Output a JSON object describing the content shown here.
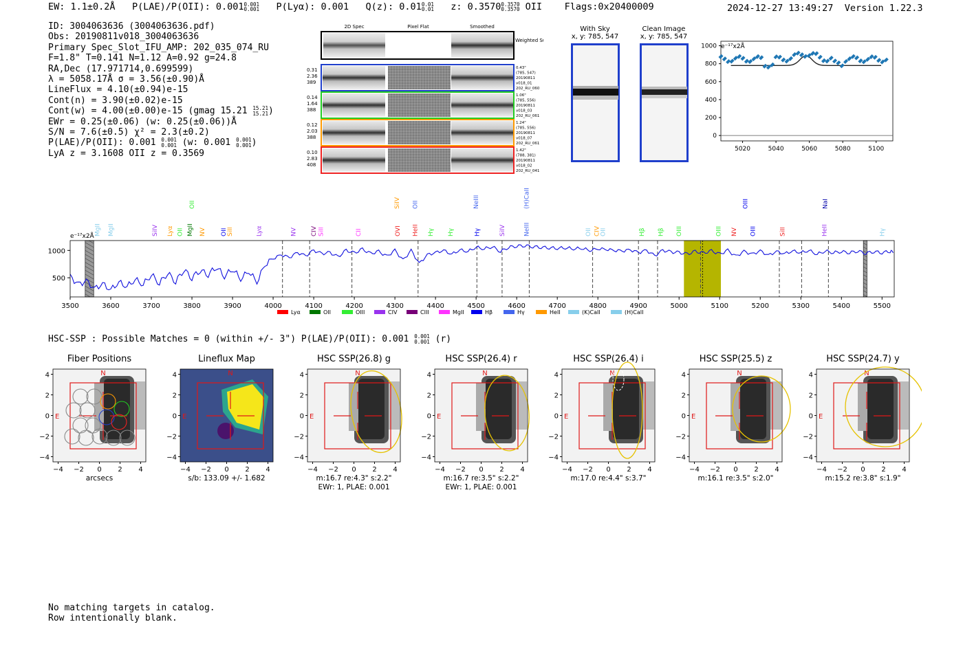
{
  "header": {
    "ew": "EW: 1.1±0.2Å",
    "plae": "P(LAE)/P(OII): 0.001",
    "plae_hi": "0.001",
    "plae_lo": "0.001",
    "plya": "P(Lyα): 0.001",
    "qz": "Q(z): 0.01",
    "qz_hi": "0.01",
    "qz_lo": "0.01",
    "z": "z: 0.3570",
    "z_hi": "0.3570",
    "z_lo": "0.3570",
    "z_line": "OII",
    "flags": "Flags:0x20400009",
    "timestamp": "2024-12-27 13:49:27",
    "version": "Version 1.22.3"
  },
  "info": {
    "id": "ID: 3004063636 (3004063636.pdf)",
    "obs": "Obs: 20190811v018_3004063636",
    "slot": "Primary Spec_Slot_IFU_AMP: 202_035_074_RU",
    "params": "F=1.8\"  T=0.141  N=1.12  A=0.92  g=24.8",
    "radec": "RA,Dec (17.971714,0.699599)",
    "lambda": "λ = 5058.17Å   σ = 3.56(±0.90)Å",
    "lineflux": "LineFlux = 4.10(±0.94)e-15",
    "contn": "Cont(n) = 3.90(±0.02)e-15",
    "contw": "Cont(w) = 4.00(±0.00)e-15 (gmag 15.21",
    "contw_hi": "15.21",
    "contw_lo": "15.21",
    "ewr": "EWr = 0.25(±0.06) (w: 0.25(±0.06))Å",
    "sn": "S/N = 7.6(±0.5)  χ² = 2.3(±0.2)",
    "plae": "P(LAE)/P(OII): 0.001",
    "plae_hi": "0.001",
    "plae_lo": "0.001",
    "plae_w": "(w: 0.001",
    "plae_w_hi": "0.001",
    "plae_w_lo": "0.001",
    "lya": "LyA z = 3.1608   OII z = 0.3569"
  },
  "cutouts": {
    "col_titles": [
      "2D Spec",
      "Pixel Flat",
      "Smoothed"
    ],
    "weighted_label": "Weighted Sum",
    "rows": [
      {
        "vals": [
          "0.31",
          "2.36",
          "389"
        ],
        "meta": [
          "0.43\"",
          "(785, 547)",
          "20190811",
          "v018_01",
          "202_RU_060"
        ],
        "color": "#1f3fcc"
      },
      {
        "vals": [
          "0.14",
          "1.64",
          "388"
        ],
        "meta": [
          "1.06\"",
          "(785, 556)",
          "20190811",
          "v018_03",
          "202_RU_061"
        ],
        "color": "#22cc22"
      },
      {
        "vals": [
          "0.12",
          "2.03",
          "388"
        ],
        "meta": [
          "1.24\"",
          "(785, 556)",
          "20190811",
          "v018_07",
          "202_RU_061"
        ],
        "color": "#ff9900"
      },
      {
        "vals": [
          "0.10",
          "2.83",
          "408"
        ],
        "meta": [
          "1.42\"",
          "(788, 381)",
          "20190811",
          "v018_02",
          "202_RU_041"
        ],
        "color": "#ee2222"
      }
    ]
  },
  "sky": {
    "with_sky_title": "With Sky",
    "with_sky_xy": "x, y: 785, 547",
    "clean_title": "Clean Image",
    "clean_xy": "x, y: 785, 547"
  },
  "zoom_plot": {
    "unit": "e⁻¹⁷x2Å",
    "yticks": [
      "1000",
      "800",
      "600",
      "400",
      "200",
      "0"
    ],
    "xticks": [
      "5020",
      "5040",
      "5060",
      "5080",
      "5100"
    ]
  },
  "chart_data": {
    "type": "line",
    "xlabel": "",
    "ylabel": "e⁻¹⁷x2Å",
    "xlim": [
      3500,
      5530
    ],
    "ylim": [
      150,
      1180
    ],
    "xticks": [
      "3500",
      "3600",
      "3700",
      "3800",
      "3900",
      "4000",
      "4100",
      "4200",
      "4300",
      "4400",
      "4500",
      "4600",
      "4700",
      "4800",
      "4900",
      "5000",
      "5100",
      "5200",
      "5300",
      "5400",
      "5500"
    ],
    "yticks": [
      "1000",
      "500"
    ],
    "series_color": "#1010dd",
    "anchors": [
      [
        3500,
        520
      ],
      [
        3520,
        380
      ],
      [
        3540,
        440
      ],
      [
        3560,
        300
      ],
      [
        3580,
        390
      ],
      [
        3600,
        280
      ],
      [
        3620,
        420
      ],
      [
        3640,
        340
      ],
      [
        3660,
        470
      ],
      [
        3680,
        380
      ],
      [
        3700,
        560
      ],
      [
        3720,
        400
      ],
      [
        3740,
        590
      ],
      [
        3760,
        430
      ],
      [
        3780,
        650
      ],
      [
        3800,
        500
      ],
      [
        3820,
        640
      ],
      [
        3840,
        560
      ],
      [
        3860,
        700
      ],
      [
        3880,
        530
      ],
      [
        3900,
        660
      ],
      [
        3920,
        480
      ],
      [
        3940,
        620
      ],
      [
        3960,
        420
      ],
      [
        3980,
        740
      ],
      [
        4000,
        850
      ],
      [
        4020,
        920
      ],
      [
        4040,
        870
      ],
      [
        4060,
        960
      ],
      [
        4080,
        900
      ],
      [
        4100,
        1000
      ],
      [
        4120,
        940
      ],
      [
        4140,
        960
      ],
      [
        4160,
        880
      ],
      [
        4180,
        1000
      ],
      [
        4200,
        950
      ],
      [
        4220,
        1020
      ],
      [
        4240,
        940
      ],
      [
        4260,
        980
      ],
      [
        4280,
        890
      ],
      [
        4300,
        1000
      ],
      [
        4320,
        820
      ],
      [
        4340,
        1000
      ],
      [
        4360,
        760
      ],
      [
        4380,
        920
      ],
      [
        4400,
        960
      ],
      [
        4420,
        1000
      ],
      [
        4440,
        930
      ],
      [
        4460,
        1010
      ],
      [
        4480,
        980
      ],
      [
        4500,
        1060
      ],
      [
        4520,
        1030
      ],
      [
        4540,
        1070
      ],
      [
        4560,
        980
      ],
      [
        4580,
        1060
      ],
      [
        4600,
        1080
      ],
      [
        4620,
        1090
      ],
      [
        4640,
        1070
      ],
      [
        4660,
        1060
      ],
      [
        4680,
        1050
      ],
      [
        4700,
        1040
      ],
      [
        4720,
        1050
      ],
      [
        4740,
        1030
      ],
      [
        4760,
        1040
      ],
      [
        4780,
        1000
      ],
      [
        4800,
        1030
      ],
      [
        4820,
        1020
      ],
      [
        4840,
        1000
      ],
      [
        4860,
        990
      ],
      [
        4880,
        1010
      ],
      [
        4900,
        960
      ],
      [
        4920,
        1000
      ],
      [
        4940,
        900
      ],
      [
        4960,
        1000
      ],
      [
        4980,
        970
      ],
      [
        5000,
        960
      ],
      [
        5020,
        930
      ],
      [
        5040,
        980
      ],
      [
        5060,
        950
      ],
      [
        5080,
        990
      ],
      [
        5100,
        930
      ],
      [
        5120,
        1000
      ],
      [
        5140,
        890
      ],
      [
        5160,
        980
      ],
      [
        5180,
        930
      ],
      [
        5200,
        990
      ],
      [
        5220,
        910
      ],
      [
        5240,
        980
      ],
      [
        5260,
        940
      ],
      [
        5280,
        990
      ],
      [
        5300,
        960
      ],
      [
        5320,
        1000
      ],
      [
        5340,
        930
      ],
      [
        5360,
        990
      ],
      [
        5380,
        960
      ],
      [
        5400,
        980
      ],
      [
        5420,
        960
      ],
      [
        5440,
        990
      ],
      [
        5460,
        950
      ],
      [
        5480,
        980
      ],
      [
        5500,
        960
      ],
      [
        5520,
        985
      ],
      [
        5530,
        980
      ]
    ],
    "dashed_lines": [
      4023,
      4090,
      4194,
      4357,
      4502,
      4564,
      4631,
      4787,
      4900,
      4947,
      5053,
      5247,
      5302,
      5368
    ],
    "highlight": [
      5012,
      5103
    ],
    "highlight_center": 5058,
    "hatched": [
      [
        3537,
        3558
      ],
      [
        5454,
        5463
      ]
    ],
    "legend": [
      {
        "label": "Lyα",
        "color": "#ff0000"
      },
      {
        "label": "OII",
        "color": "#007700"
      },
      {
        "label": "OIII",
        "color": "#33ee33"
      },
      {
        "label": "CIV",
        "color": "#9933ee"
      },
      {
        "label": "CIII",
        "color": "#770077"
      },
      {
        "label": "MgII",
        "color": "#ff33ff"
      },
      {
        "label": "Hβ",
        "color": "#0000ee"
      },
      {
        "label": "Hγ",
        "color": "#4466ee"
      },
      {
        "label": "HeII",
        "color": "#ff9900"
      },
      {
        "label": "(K)CaII",
        "color": "#87ceeb"
      },
      {
        "label": "(H)CaII",
        "color": "#87ceeb"
      }
    ],
    "line_labels": [
      {
        "w": 3567,
        "t": "MgII",
        "c": "#87ceeb",
        "row": 0
      },
      {
        "w": 3600,
        "t": "MgII",
        "c": "#87ceeb",
        "row": 0
      },
      {
        "w": 3708,
        "t": "SiIV",
        "c": "#9933ee",
        "row": 0
      },
      {
        "w": 3746,
        "t": "Lyα",
        "c": "#ff9900",
        "row": 0
      },
      {
        "w": 3770,
        "t": "OII",
        "c": "#33ee33",
        "row": 0
      },
      {
        "w": 3795,
        "t": "MgII",
        "c": "#007700",
        "row": 0
      },
      {
        "w": 3800,
        "t": "OII",
        "c": "#33ee33",
        "row": 1
      },
      {
        "w": 3825,
        "t": "NV",
        "c": "#ff9900",
        "row": 0
      },
      {
        "w": 3878,
        "t": "OII",
        "c": "#0000ee",
        "row": 0
      },
      {
        "w": 3893,
        "t": "SiII",
        "c": "#ff9900",
        "row": 0
      },
      {
        "w": 3965,
        "t": "Lyα",
        "c": "#9933ee",
        "row": 0
      },
      {
        "w": 4050,
        "t": "NV",
        "c": "#9933ee",
        "row": 0
      },
      {
        "w": 4100,
        "t": "CIV",
        "c": "#770077",
        "row": 0
      },
      {
        "w": 4118,
        "t": "SiII",
        "c": "#ff33ff",
        "row": 0
      },
      {
        "w": 4210,
        "t": "CII",
        "c": "#ff33ff",
        "row": 0
      },
      {
        "w": 4307,
        "t": "OVI",
        "c": "#ee2222",
        "row": 0
      },
      {
        "w": 4305,
        "t": "SiIV",
        "c": "#ff9900",
        "row": 1
      },
      {
        "w": 4350,
        "t": "HeII",
        "c": "#ee2222",
        "row": 0
      },
      {
        "w": 4350,
        "t": "OII",
        "c": "#4466ee",
        "row": 1
      },
      {
        "w": 4388,
        "t": "Hγ",
        "c": "#33ee33",
        "row": 0
      },
      {
        "w": 4437,
        "t": "Hγ",
        "c": "#33ee33",
        "row": 0
      },
      {
        "w": 4502,
        "t": "Hγ",
        "c": "#0000ee",
        "row": 0
      },
      {
        "w": 4500,
        "t": "NeIII",
        "c": "#4466ee",
        "row": 1
      },
      {
        "w": 4564,
        "t": "SiIV",
        "c": "#9933ee",
        "row": 0
      },
      {
        "w": 4624,
        "t": "NeIII",
        "c": "#4466ee",
        "row": 0
      },
      {
        "w": 4624,
        "t": "(H)CaII",
        "c": "#4466ee",
        "row": 2
      },
      {
        "w": 4776,
        "t": "OII",
        "c": "#87ceeb",
        "row": 0
      },
      {
        "w": 4797,
        "t": "CIV",
        "c": "#ff9900",
        "row": 0
      },
      {
        "w": 4812,
        "t": "OII",
        "c": "#87ceeb",
        "row": 0
      },
      {
        "w": 4908,
        "t": "Hβ",
        "c": "#33ee33",
        "row": 0
      },
      {
        "w": 4955,
        "t": "Hβ",
        "c": "#33ee33",
        "row": 0
      },
      {
        "w": 5000,
        "t": "OIII",
        "c": "#33ee33",
        "row": 0
      },
      {
        "w": 5097,
        "t": "OIII",
        "c": "#33ee33",
        "row": 0
      },
      {
        "w": 5135,
        "t": "NV",
        "c": "#ee2222",
        "row": 0
      },
      {
        "w": 5182,
        "t": "OIII",
        "c": "#0000ee",
        "row": 0
      },
      {
        "w": 5163,
        "t": "OIII",
        "c": "#0000ee",
        "row": 1
      },
      {
        "w": 5255,
        "t": "SiII",
        "c": "#ee2222",
        "row": 0
      },
      {
        "w": 5358,
        "t": "HeII",
        "c": "#9933ee",
        "row": 0
      },
      {
        "w": 5360,
        "t": "NaI",
        "c": "#0000aa",
        "row": 1
      },
      {
        "w": 5500,
        "t": "Hγ",
        "c": "#87ceeb",
        "row": 0
      }
    ]
  },
  "hsc": {
    "summary": "HSC-SSP : Possible Matches = 0 (within +/- 3\")  P(LAE)/P(OII): 0.001",
    "summary_hi": "0.001",
    "summary_lo": "0.001",
    "summary_band": "(r)",
    "xticks": [
      "−4",
      "−2",
      "0",
      "2",
      "4"
    ],
    "yticks": [
      "4",
      "2",
      "0",
      "−2",
      "−4"
    ],
    "n_label": "N",
    "e_label": "E",
    "panels": [
      {
        "title": "Fiber Positions",
        "caption1": "arcsecs",
        "caption2": ""
      },
      {
        "title": "Lineflux Map",
        "caption1": "s/b: 133.09 +/- 1.682",
        "caption2": ""
      },
      {
        "title": "HSC SSP(26.8) g",
        "caption1": "m:16.7  re:4.3\"  s:2.2\"",
        "caption2": "EWr: 1, PLAE: 0.001"
      },
      {
        "title": "HSC SSP(26.4) r",
        "caption1": "m:16.7  re:3.5\"  s:2.2\"",
        "caption2": "EWr: 1, PLAE: 0.001"
      },
      {
        "title": "HSC SSP(26.4) i",
        "caption1": "m:17.0  re:4.4\"  s:3.7\"",
        "caption2": ""
      },
      {
        "title": "HSC SSP(25.5) z",
        "caption1": "m:16.1  re:3.5\"  s:2.0\"",
        "caption2": ""
      },
      {
        "title": "HSC SSP(24.7) y",
        "caption1": "m:15.2  re:3.8\"  s:1.9\"",
        "caption2": ""
      }
    ]
  },
  "footer": {
    "line1": "No matching targets in catalog.",
    "line2": "Row intentionally blank."
  }
}
